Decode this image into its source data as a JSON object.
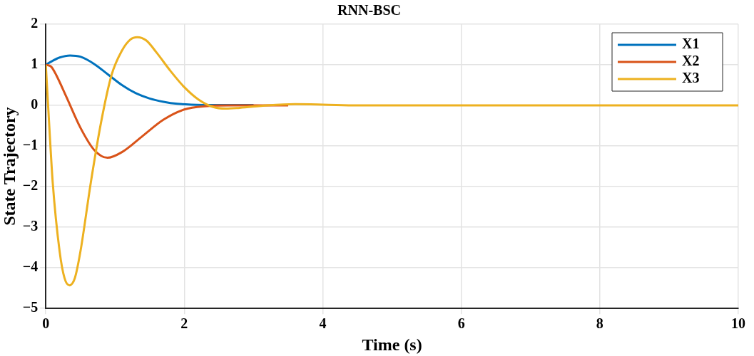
{
  "chart_data": {
    "type": "line",
    "title": "RNN-BSC",
    "xlabel": "Time (s)",
    "ylabel": "State Trajectory",
    "xlim": [
      0,
      10
    ],
    "ylim": [
      -5,
      2
    ],
    "xticks": [
      0,
      2,
      4,
      6,
      8,
      10
    ],
    "yticks": [
      -5,
      -4,
      -3,
      -2,
      -1,
      0,
      1,
      2
    ],
    "grid": true,
    "legend": "top right",
    "marker": "none",
    "line_style": "solid",
    "series": [
      {
        "name": "X1",
        "color": "#0072bd",
        "x": [
          0,
          0.1,
          0.2,
          0.35,
          0.5,
          0.7,
          0.9,
          1.1,
          1.3,
          1.5,
          1.7,
          1.9,
          2.1,
          2.5,
          3
        ],
        "values": [
          1,
          1.1,
          1.18,
          1.23,
          1.2,
          1.02,
          0.76,
          0.5,
          0.3,
          0.17,
          0.09,
          0.04,
          0.02,
          0.01,
          0.01
        ]
      },
      {
        "name": "X2",
        "color": "#d95319",
        "x": [
          0,
          0.08,
          0.15,
          0.3,
          0.5,
          0.7,
          0.89,
          1.1,
          1.4,
          1.7,
          2,
          2.3,
          2.7,
          3.5
        ],
        "values": [
          1,
          0.95,
          0.75,
          0.2,
          -0.55,
          -1.1,
          -1.29,
          -1.15,
          -0.75,
          -0.35,
          -0.1,
          -0.02,
          0,
          0
        ]
      },
      {
        "name": "X3",
        "color": "#edb120",
        "x": [
          0,
          0.05,
          0.1,
          0.2,
          0.27,
          0.34,
          0.42,
          0.5,
          0.65,
          0.8,
          0.95,
          1.1,
          1.22,
          1.32,
          1.45,
          1.6,
          1.8,
          2,
          2.2,
          2.4,
          2.6,
          2.8,
          3.2,
          3.6,
          4,
          4.5,
          5,
          10
        ],
        "values": [
          1,
          -0.5,
          -1.9,
          -3.6,
          -4.25,
          -4.43,
          -4.25,
          -3.6,
          -1.9,
          -0.4,
          0.75,
          1.35,
          1.62,
          1.68,
          1.6,
          1.3,
          0.85,
          0.45,
          0.15,
          -0.03,
          -0.08,
          -0.06,
          0,
          0.03,
          0.02,
          0,
          0,
          0
        ]
      }
    ]
  }
}
